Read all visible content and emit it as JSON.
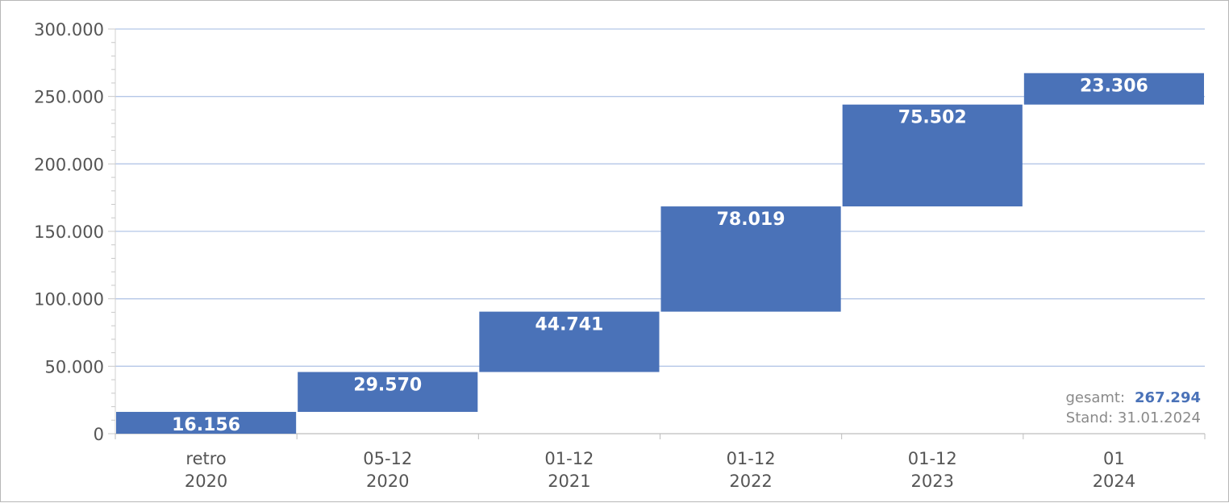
{
  "chart_data": {
    "type": "bar",
    "subtype": "waterfall",
    "categories": [
      [
        "retro",
        "2020"
      ],
      [
        "05-12",
        "2020"
      ],
      [
        "01-12",
        "2021"
      ],
      [
        "01-12",
        "2022"
      ],
      [
        "01-12",
        "2023"
      ],
      [
        "01",
        "2024"
      ]
    ],
    "values": [
      16156,
      29570,
      44741,
      78019,
      75502,
      23306
    ],
    "value_labels": [
      "16.156",
      "29.570",
      "44.741",
      "78.019",
      "75.502",
      "23.306"
    ],
    "ylim": [
      0,
      300000
    ],
    "yticks": [
      0,
      50000,
      100000,
      150000,
      200000,
      250000,
      300000
    ],
    "ytick_labels": [
      "0",
      "50.000",
      "100.000",
      "150.000",
      "200.000",
      "250.000",
      "300.000"
    ],
    "grid": true,
    "bar_color": "#4a72b8",
    "grid_color": "#b4c6e7",
    "annotation": {
      "total_label": "gesamt:",
      "total_value": "267.294",
      "date_label": "Stand: 31.01.2024"
    }
  }
}
